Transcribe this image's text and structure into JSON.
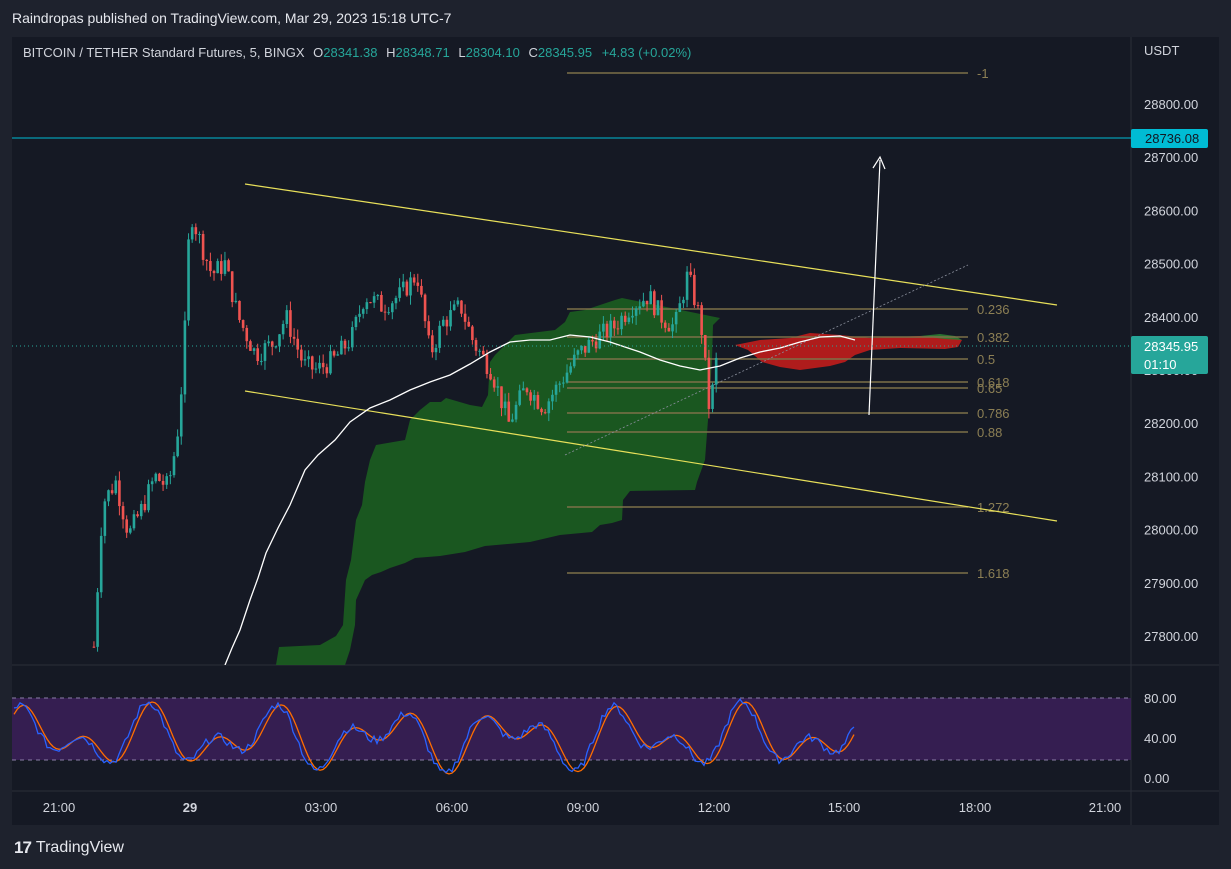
{
  "header": {
    "publisher": "Raindropas published on TradingView.com, Mar 29, 2023 15:18 UTC-7"
  },
  "legend": {
    "symbol": "BITCOIN / TETHER Standard Futures, 5, BINGX",
    "o_label": "O",
    "o_value": "28341.38",
    "h_label": "H",
    "h_value": "28348.71",
    "l_label": "L",
    "l_value": "28304.10",
    "c_label": "C",
    "c_value": "28345.95",
    "change": "+4.83 (+0.02%)"
  },
  "price_axis": {
    "unit": "USDT",
    "ticks": [
      "28800.00",
      "28700.00",
      "28600.00",
      "28500.00",
      "28400.00",
      "28300.00",
      "28200.00",
      "28100.00",
      "28000.00",
      "27900.00",
      "27800.00"
    ],
    "horizontal_line_label": "28736.08",
    "last_price_label": "28345.95",
    "countdown_label": "01:10"
  },
  "time_axis": {
    "ticks": [
      "21:00",
      "29",
      "03:00",
      "06:00",
      "09:00",
      "12:00",
      "15:00",
      "18:00",
      "21:00"
    ]
  },
  "fib_levels": [
    "-1",
    "0.236",
    "0.382",
    "0.5",
    "0.618",
    "0.65",
    "0.786",
    "0.88",
    "1.272",
    "1.618"
  ],
  "oscillator": {
    "ticks": [
      "80.00",
      "40.00",
      "0.00"
    ]
  },
  "branding": {
    "logo_text": "TradingView"
  },
  "colors": {
    "bull": "#26a69a",
    "bear": "#ef5350",
    "horizontal_line": "#00bcd4",
    "channel": "#e8e05a",
    "fib": "#7d7148",
    "cloud_green": "#1b5e20",
    "cloud_red": "#b71c1c",
    "stoch_k": "#2962ff",
    "stoch_d": "#ff6d00",
    "stoch_band": "#3d1f5c"
  },
  "chart_data": {
    "type": "candlestick",
    "symbol": "BITCOIN / TETHER Standard Futures",
    "interval": "5",
    "exchange": "BINGX",
    "y_range": [
      27750,
      28870
    ],
    "y_ticks": [
      28800,
      28700,
      28600,
      28500,
      28400,
      28300,
      28200,
      28100,
      28000,
      27900,
      27800
    ],
    "x_ticks": [
      "21:00",
      "29",
      "03:00",
      "06:00",
      "09:00",
      "12:00",
      "15:00",
      "18:00",
      "21:00"
    ],
    "horizontal_line": 28736.08,
    "last_price": 28345.95,
    "price_path_hours": [
      {
        "t": 0.8,
        "p": 27780
      },
      {
        "t": 1.0,
        "p": 28050
      },
      {
        "t": 1.3,
        "p": 28090
      },
      {
        "t": 1.6,
        "p": 27990
      },
      {
        "t": 1.9,
        "p": 28040
      },
      {
        "t": 2.2,
        "p": 28100
      },
      {
        "t": 2.5,
        "p": 28080
      },
      {
        "t": 2.7,
        "p": 28170
      },
      {
        "t": 2.85,
        "p": 28310
      },
      {
        "t": 3.0,
        "p": 28600
      },
      {
        "t": 3.2,
        "p": 28550
      },
      {
        "t": 3.5,
        "p": 28480
      },
      {
        "t": 3.8,
        "p": 28500
      },
      {
        "t": 4.1,
        "p": 28400
      },
      {
        "t": 4.5,
        "p": 28330
      },
      {
        "t": 4.9,
        "p": 28350
      },
      {
        "t": 5.2,
        "p": 28400
      },
      {
        "t": 5.6,
        "p": 28310
      },
      {
        "t": 5.9,
        "p": 28300
      },
      {
        "t": 6.3,
        "p": 28320
      },
      {
        "t": 6.7,
        "p": 28360
      },
      {
        "t": 7.0,
        "p": 28440
      },
      {
        "t": 7.4,
        "p": 28420
      },
      {
        "t": 7.8,
        "p": 28440
      },
      {
        "t": 8.2,
        "p": 28480
      },
      {
        "t": 8.5,
        "p": 28330
      },
      {
        "t": 8.8,
        "p": 28390
      },
      {
        "t": 9.2,
        "p": 28420
      },
      {
        "t": 9.5,
        "p": 28350
      },
      {
        "t": 9.9,
        "p": 28300
      },
      {
        "t": 10.3,
        "p": 28200
      },
      {
        "t": 10.7,
        "p": 28270
      },
      {
        "t": 11.1,
        "p": 28230
      },
      {
        "t": 11.5,
        "p": 28280
      },
      {
        "t": 11.9,
        "p": 28330
      },
      {
        "t": 12.3,
        "p": 28360
      },
      {
        "t": 12.7,
        "p": 28380
      },
      {
        "t": 13.1,
        "p": 28420
      },
      {
        "t": 13.5,
        "p": 28440
      },
      {
        "t": 13.8,
        "p": 28400
      },
      {
        "t": 14.1,
        "p": 28380
      },
      {
        "t": 14.4,
        "p": 28480
      },
      {
        "t": 14.7,
        "p": 28390
      },
      {
        "t": 14.9,
        "p": 28220
      },
      {
        "t": 15.1,
        "p": 28345.95
      }
    ]
  }
}
